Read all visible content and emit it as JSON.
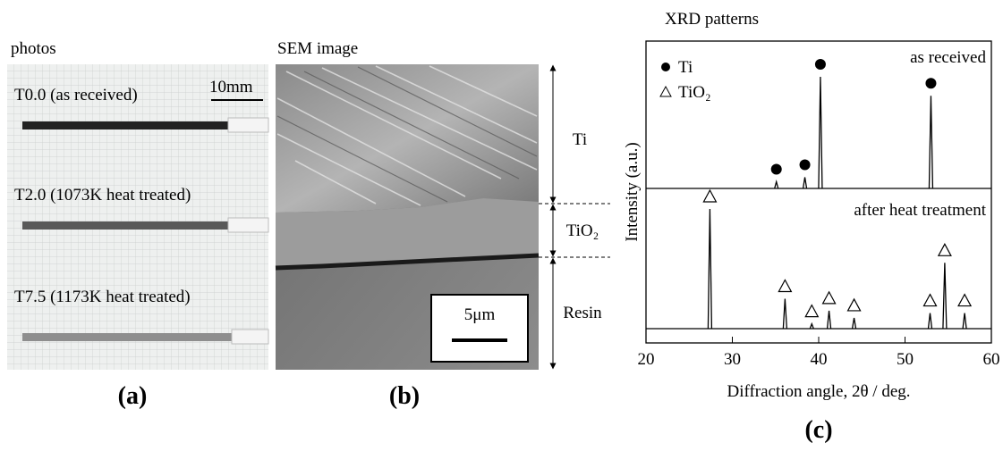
{
  "panels": {
    "a": {
      "title": "photos",
      "label": "(a)",
      "scale_bar": "10mm",
      "samples": [
        "T0.0 (as received)",
        "T2.0 (1073K heat treated)",
        "T7.5 (1173K heat treated)"
      ]
    },
    "b": {
      "title": "SEM image",
      "label": "(b)",
      "scale_bar": "5μm",
      "layers": [
        "Ti",
        "TiO₂",
        "Resin"
      ]
    },
    "c": {
      "label": "(c)"
    }
  },
  "chart_data": {
    "type": "xrd",
    "title": "XRD patterns",
    "xlabel": "Diffraction angle, 2θ / deg.",
    "ylabel": "Intensity (a.u.)",
    "xlim": [
      20,
      60
    ],
    "xticks": [
      20,
      30,
      40,
      50,
      60
    ],
    "ylim": [
      0,
      100
    ],
    "legend": [
      {
        "name": "Ti",
        "marker": "circle"
      },
      {
        "name": "TiO₂",
        "marker": "triangle"
      }
    ],
    "series": [
      {
        "name": "as received",
        "color": "#000000",
        "legend_item": 0,
        "x": [
          35.1,
          38.4,
          40.2,
          53.0
        ],
        "values": [
          6,
          10,
          100,
          83
        ]
      },
      {
        "name": "after heat treatment",
        "color": "#000000",
        "legend_item": 1,
        "x": [
          27.4,
          36.1,
          39.2,
          41.2,
          44.1,
          52.9,
          54.6,
          56.9
        ],
        "values": [
          100,
          25,
          4,
          15,
          9,
          13,
          55,
          13
        ]
      }
    ]
  }
}
